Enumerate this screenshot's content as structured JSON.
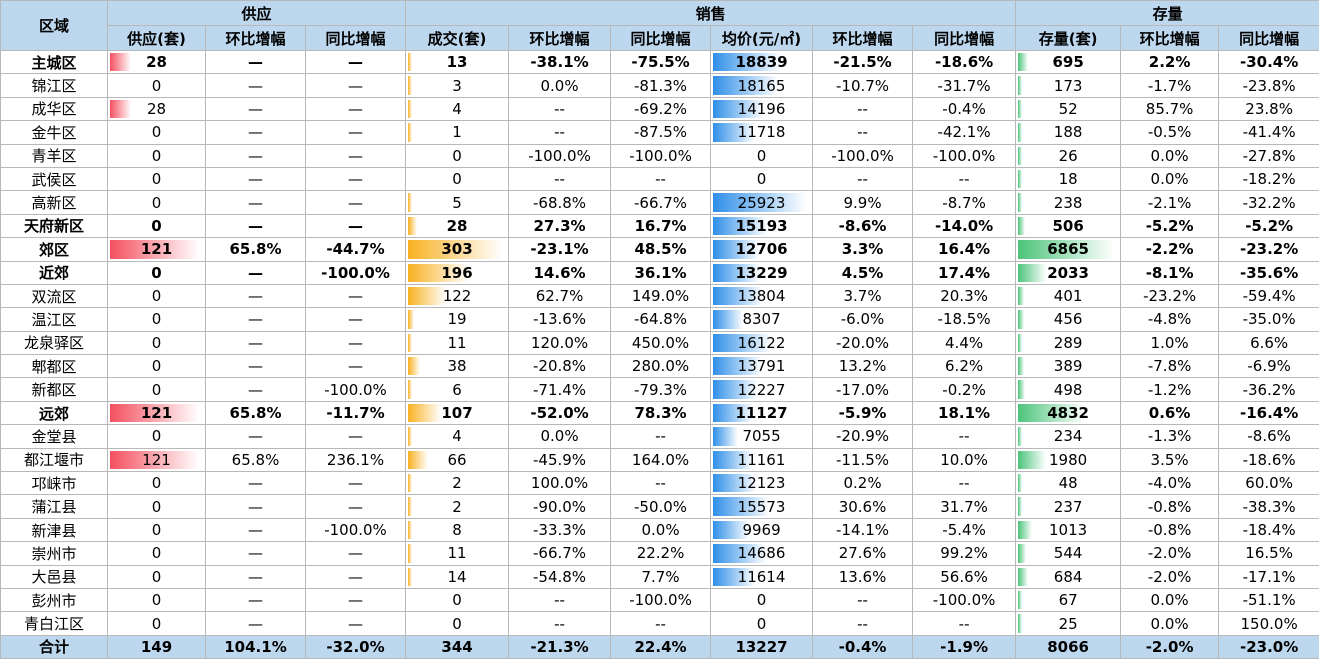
{
  "table": {
    "groups": [
      "区域",
      "供应",
      "销售",
      "存量"
    ],
    "columns": [
      "供应(套)",
      "环比增幅",
      "同比增幅",
      "成交(套)",
      "环比增幅",
      "同比增幅",
      "均价(元/㎡)",
      "环比增幅",
      "同比增幅",
      "存量(套)",
      "环比增幅",
      "同比增幅"
    ],
    "rows": [
      [
        "主城区",
        "28",
        "—",
        "—",
        "13",
        "-38.1%",
        "-75.5%",
        "18839",
        "-21.5%",
        "-18.6%",
        "695",
        "2.2%",
        "-30.4%"
      ],
      [
        "锦江区",
        "0",
        "—",
        "—",
        "3",
        "0.0%",
        "-81.3%",
        "18165",
        "-10.7%",
        "-31.7%",
        "173",
        "-1.7%",
        "-23.8%"
      ],
      [
        "成华区",
        "28",
        "—",
        "—",
        "4",
        "--",
        "-69.2%",
        "14196",
        "--",
        "-0.4%",
        "52",
        "85.7%",
        "23.8%"
      ],
      [
        "金牛区",
        "0",
        "—",
        "—",
        "1",
        "--",
        "-87.5%",
        "11718",
        "--",
        "-42.1%",
        "188",
        "-0.5%",
        "-41.4%"
      ],
      [
        "青羊区",
        "0",
        "—",
        "—",
        "0",
        "-100.0%",
        "-100.0%",
        "0",
        "-100.0%",
        "-100.0%",
        "26",
        "0.0%",
        "-27.8%"
      ],
      [
        "武侯区",
        "0",
        "—",
        "—",
        "0",
        "--",
        "--",
        "0",
        "--",
        "--",
        "18",
        "0.0%",
        "-18.2%"
      ],
      [
        "高新区",
        "0",
        "—",
        "—",
        "5",
        "-68.8%",
        "-66.7%",
        "25923",
        "9.9%",
        "-8.7%",
        "238",
        "-2.1%",
        "-32.2%"
      ],
      [
        "天府新区",
        "0",
        "—",
        "—",
        "28",
        "27.3%",
        "16.7%",
        "15193",
        "-8.6%",
        "-14.0%",
        "506",
        "-5.2%",
        "-5.2%"
      ],
      [
        "郊区",
        "121",
        "65.8%",
        "-44.7%",
        "303",
        "-23.1%",
        "48.5%",
        "12706",
        "3.3%",
        "16.4%",
        "6865",
        "-2.2%",
        "-23.2%"
      ],
      [
        "近郊",
        "0",
        "—",
        "-100.0%",
        "196",
        "14.6%",
        "36.1%",
        "13229",
        "4.5%",
        "17.4%",
        "2033",
        "-8.1%",
        "-35.6%"
      ],
      [
        "双流区",
        "0",
        "—",
        "—",
        "122",
        "62.7%",
        "149.0%",
        "13804",
        "3.7%",
        "20.3%",
        "401",
        "-23.2%",
        "-59.4%"
      ],
      [
        "温江区",
        "0",
        "—",
        "—",
        "19",
        "-13.6%",
        "-64.8%",
        "8307",
        "-6.0%",
        "-18.5%",
        "456",
        "-4.8%",
        "-35.0%"
      ],
      [
        "龙泉驿区",
        "0",
        "—",
        "—",
        "11",
        "120.0%",
        "450.0%",
        "16122",
        "-20.0%",
        "4.4%",
        "289",
        "1.0%",
        "6.6%"
      ],
      [
        "郫都区",
        "0",
        "—",
        "—",
        "38",
        "-20.8%",
        "280.0%",
        "13791",
        "13.2%",
        "6.2%",
        "389",
        "-7.8%",
        "-6.9%"
      ],
      [
        "新都区",
        "0",
        "—",
        "-100.0%",
        "6",
        "-71.4%",
        "-79.3%",
        "12227",
        "-17.0%",
        "-0.2%",
        "498",
        "-1.2%",
        "-36.2%"
      ],
      [
        "远郊",
        "121",
        "65.8%",
        "-11.7%",
        "107",
        "-52.0%",
        "78.3%",
        "11127",
        "-5.9%",
        "18.1%",
        "4832",
        "0.6%",
        "-16.4%"
      ],
      [
        "金堂县",
        "0",
        "—",
        "—",
        "4",
        "0.0%",
        "--",
        "7055",
        "-20.9%",
        "--",
        "234",
        "-1.3%",
        "-8.6%"
      ],
      [
        "都江堰市",
        "121",
        "65.8%",
        "236.1%",
        "66",
        "-45.9%",
        "164.0%",
        "11161",
        "-11.5%",
        "10.0%",
        "1980",
        "3.5%",
        "-18.6%"
      ],
      [
        "邛崃市",
        "0",
        "—",
        "—",
        "2",
        "100.0%",
        "--",
        "12123",
        "0.2%",
        "--",
        "48",
        "-4.0%",
        "60.0%"
      ],
      [
        "蒲江县",
        "0",
        "—",
        "—",
        "2",
        "-90.0%",
        "-50.0%",
        "15573",
        "30.6%",
        "31.7%",
        "237",
        "-0.8%",
        "-38.3%"
      ],
      [
        "新津县",
        "0",
        "—",
        "-100.0%",
        "8",
        "-33.3%",
        "0.0%",
        "9969",
        "-14.1%",
        "-5.4%",
        "1013",
        "-0.8%",
        "-18.4%"
      ],
      [
        "崇州市",
        "0",
        "—",
        "—",
        "11",
        "-66.7%",
        "22.2%",
        "14686",
        "27.6%",
        "99.2%",
        "544",
        "-2.0%",
        "16.5%"
      ],
      [
        "大邑县",
        "0",
        "—",
        "—",
        "14",
        "-54.8%",
        "7.7%",
        "11614",
        "13.6%",
        "56.6%",
        "684",
        "-2.0%",
        "-17.1%"
      ],
      [
        "彭州市",
        "0",
        "—",
        "—",
        "0",
        "--",
        "-100.0%",
        "0",
        "--",
        "-100.0%",
        "67",
        "0.0%",
        "-51.1%"
      ],
      [
        "青白江区",
        "0",
        "—",
        "—",
        "0",
        "--",
        "--",
        "0",
        "--",
        "--",
        "25",
        "0.0%",
        "150.0%"
      ],
      [
        "合计",
        "149",
        "104.1%",
        "-32.0%",
        "344",
        "-21.3%",
        "22.4%",
        "13227",
        "-0.4%",
        "-1.9%",
        "8066",
        "-2.0%",
        "-23.0%"
      ]
    ]
  }
}
